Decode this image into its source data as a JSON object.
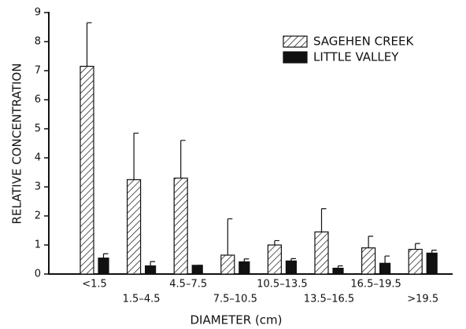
{
  "chart_data": {
    "type": "bar",
    "xlabel": "DIAMETER (cm)",
    "ylabel": "RELATIVE CONCENTRATION",
    "categories": [
      "<1.5",
      "1.5–4.5",
      "4.5–7.5",
      "7.5–10.5",
      "10.5–13.5",
      "13.5–16.5",
      "16.5–19.5",
      ">19.5"
    ],
    "series": [
      {
        "name": "SAGEHEN CREEK",
        "color": "#111111",
        "hatch": true,
        "values": [
          7.15,
          3.25,
          3.3,
          0.65,
          1.0,
          1.45,
          0.9,
          0.85
        ],
        "errors": [
          1.5,
          1.6,
          1.3,
          1.25,
          0.15,
          0.8,
          0.4,
          0.2
        ]
      },
      {
        "name": "LITTLE VALLEY",
        "color": "#111111",
        "hatch": false,
        "values": [
          0.55,
          0.28,
          0.3,
          0.42,
          0.45,
          0.2,
          0.37,
          0.72
        ],
        "errors": [
          0.15,
          0.15,
          0.0,
          0.1,
          0.08,
          0.08,
          0.25,
          0.1
        ]
      }
    ],
    "ylim": [
      0,
      9
    ],
    "yticks": [
      0,
      1,
      2,
      3,
      4,
      5,
      6,
      7,
      8,
      9
    ],
    "legend": "upper right"
  }
}
